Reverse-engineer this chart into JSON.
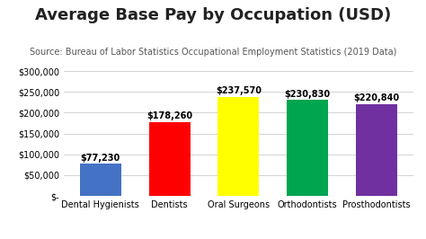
{
  "title": "Average Base Pay by Occupation (USD)",
  "subtitle": "Source: Bureau of Labor Statistics Occupational Employment Statistics (2019 Data)",
  "categories": [
    "Dental Hygienists",
    "Dentists",
    "Oral Surgeons",
    "Orthodontists",
    "Prosthodontists"
  ],
  "values": [
    77230,
    178260,
    237570,
    230830,
    220840
  ],
  "bar_colors": [
    "#4472C4",
    "#FF0000",
    "#FFFF00",
    "#00A550",
    "#7030A0"
  ],
  "labels": [
    "$77,230",
    "$178,260",
    "$237,570",
    "$230,830",
    "$220,840"
  ],
  "ylim": [
    0,
    310000
  ],
  "yticks": [
    0,
    50000,
    100000,
    150000,
    200000,
    250000,
    300000
  ],
  "ytick_labels": [
    "$-",
    "$50,000",
    "$100,000",
    "$150,000",
    "$200,000",
    "$250,000",
    "$300,000"
  ],
  "background_color": "#FFFFFF",
  "title_fontsize": 13,
  "subtitle_fontsize": 7,
  "label_fontsize": 7,
  "tick_fontsize": 7,
  "bar_width": 0.6
}
